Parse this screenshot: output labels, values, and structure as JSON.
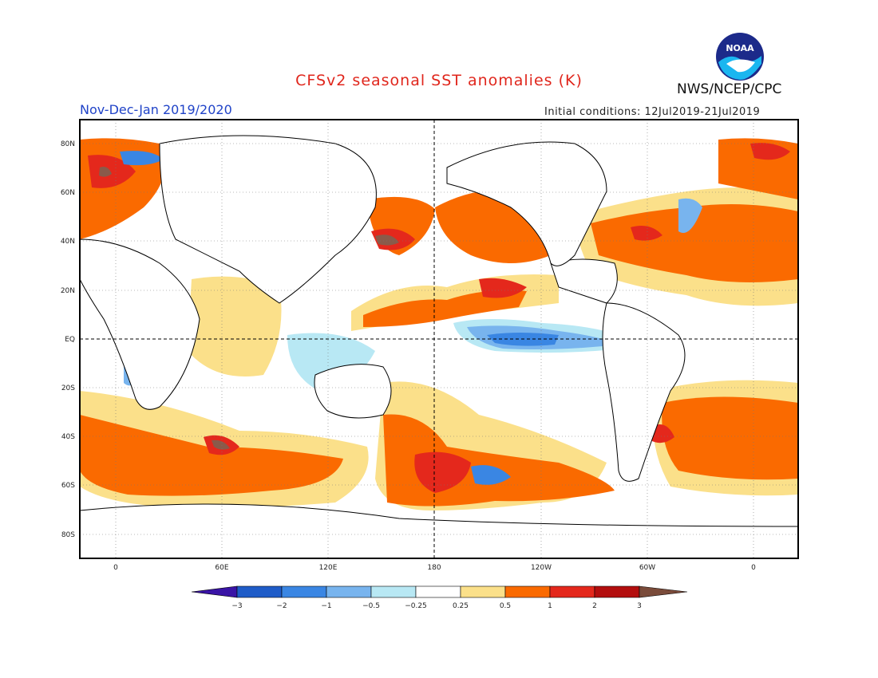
{
  "header": {
    "title": "CFSv2 seasonal SST anomalies (K)",
    "agency": "NWS/NCEP/CPC",
    "period": "Nov-Dec-Jan 2019/2020",
    "initial_conditions": "Initial conditions: 12Jul2019-21Jul2019",
    "logo_text": "NOAA"
  },
  "map": {
    "projection": "cylindrical equidistant",
    "lon_labels": [
      "0",
      "60E",
      "120E",
      "180",
      "120W",
      "60W",
      "0"
    ],
    "lat_labels": [
      "80N",
      "60N",
      "40N",
      "20N",
      "EQ",
      "20S",
      "40S",
      "60S",
      "80S"
    ]
  },
  "colorbar": {
    "ticks": [
      "−3",
      "−2",
      "−1",
      "−0.5",
      "−0.25",
      "0.25",
      "0.5",
      "1",
      "2",
      "3"
    ],
    "colors": [
      "#3a14a6",
      "#1f5cc8",
      "#3a86e3",
      "#78b4ee",
      "#b8e8f4",
      "#ffffff",
      "#fbe08a",
      "#fa6a00",
      "#e4281c",
      "#b30e0e",
      "#7a4b3a"
    ]
  }
}
